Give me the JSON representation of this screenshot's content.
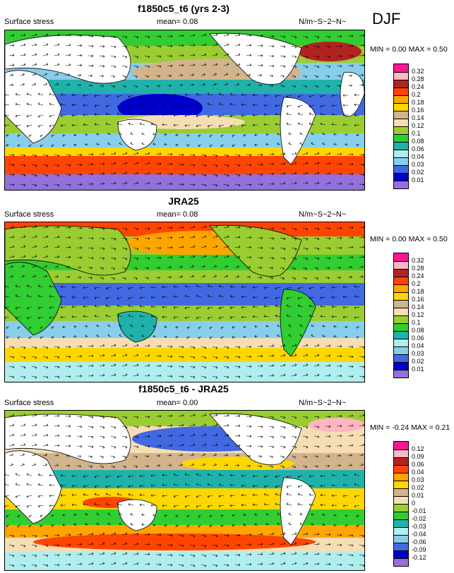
{
  "season": "DJF",
  "panels": [
    {
      "title": "f1850c5_t6 (yrs 2-3)",
      "variable": "Surface stress",
      "mean": "mean=  0.08",
      "units": "N/m~S~2~N~",
      "minmax": "MIN =  0.00 MAX =  0.50",
      "levels": [
        "0.32",
        "0.28",
        "0.24",
        "0.2",
        "0.18",
        "0.16",
        "0.14",
        "0.12",
        "0.1",
        "0.08",
        "0.06",
        "0.04",
        "0.03",
        "0.02",
        "0.01"
      ],
      "colors": [
        "#ff1493",
        "#ffb6c1",
        "#b22222",
        "#ff4500",
        "#ffa500",
        "#ffd700",
        "#d2b48c",
        "#f5deb3",
        "#9acd32",
        "#32cd32",
        "#20b2aa",
        "#afeeee",
        "#87ceeb",
        "#4169e1",
        "#0000cd",
        "#9370db"
      ],
      "fields": [
        {
          "band": "southern-ocean",
          "color": "#ff4500"
        },
        {
          "band": "subtropics",
          "color": "#9acd32"
        },
        {
          "band": "tropics",
          "color": "#4169e1"
        },
        {
          "band": "north-pacific",
          "color": "#87ceeb"
        }
      ]
    },
    {
      "title": "JRA25",
      "variable": "Surface stress",
      "mean": "mean=  0.08",
      "units": "N/m~S~2~N~",
      "minmax": "MIN =  0.00 MAX =  0.50",
      "levels": [
        "0.32",
        "0.28",
        "0.24",
        "0.2",
        "0.18",
        "0.16",
        "0.14",
        "0.12",
        "0.1",
        "0.08",
        "0.06",
        "0.04",
        "0.03",
        "0.02",
        "0.01"
      ],
      "colors": [
        "#ff1493",
        "#ffb6c1",
        "#b22222",
        "#ff4500",
        "#ffa500",
        "#ffd700",
        "#d2b48c",
        "#f5deb3",
        "#9acd32",
        "#32cd32",
        "#20b2aa",
        "#afeeee",
        "#87ceeb",
        "#4169e1",
        "#0000cd",
        "#9370db"
      ]
    },
    {
      "title": "f1850c5_t6 - JRA25",
      "variable": "Surface stress",
      "mean": "mean=  0.00",
      "units": "N/m~S~2~N~",
      "minmax": "MIN = -0.24 MAX =  0.21",
      "levels": [
        "0.12",
        "0.09",
        "0.06",
        "0.04",
        "0.03",
        "0.02",
        "0.01",
        "0",
        "-0.01",
        "-0.02",
        "-0.03",
        "-0.04",
        "-0.06",
        "-0.09",
        "-0.12"
      ],
      "colors": [
        "#ff1493",
        "#ffb6c1",
        "#b22222",
        "#ff4500",
        "#ffa500",
        "#ffd700",
        "#d2b48c",
        "#f5deb3",
        "#9acd32",
        "#32cd32",
        "#20b2aa",
        "#afeeee",
        "#87ceeb",
        "#4169e1",
        "#0000cd",
        "#9370db"
      ]
    }
  ]
}
